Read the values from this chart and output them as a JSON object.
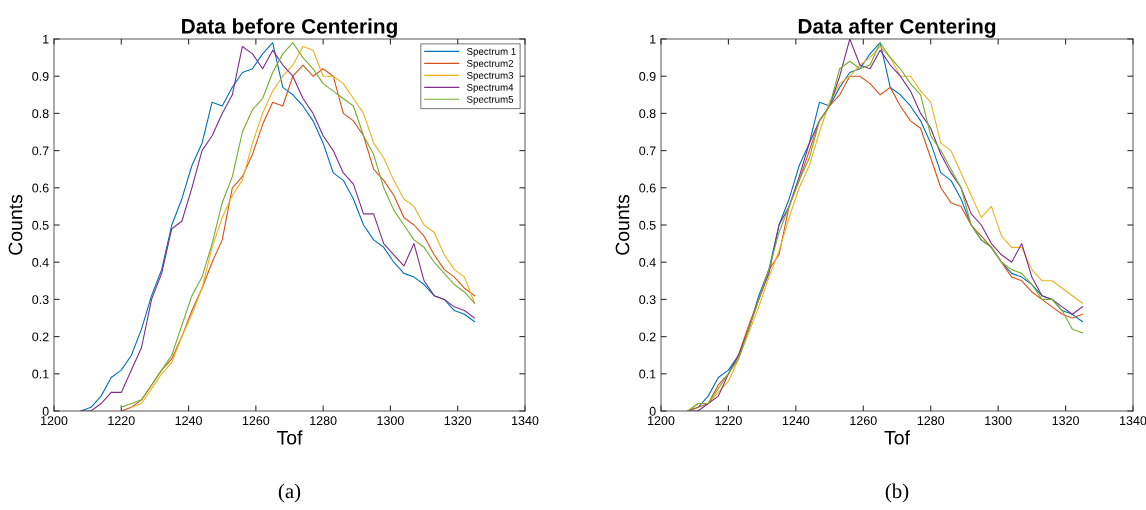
{
  "chart_data": [
    {
      "type": "line",
      "title": "Data before Centering",
      "xlabel": "Tof",
      "ylabel": "Counts",
      "annotations": [
        "(a)"
      ],
      "xlim": [
        1200,
        1340
      ],
      "xticks": [
        1200,
        1220,
        1240,
        1260,
        1280,
        1300,
        1320,
        1340
      ],
      "ylim": [
        0,
        1
      ],
      "yticks": [
        0,
        0.1,
        0.2,
        0.3,
        0.4,
        0.5,
        0.6,
        0.7,
        0.8,
        0.9,
        1
      ],
      "grid": false,
      "legend": "top right",
      "x": [
        1208,
        1211,
        1214,
        1217,
        1220,
        1223,
        1226,
        1229,
        1232,
        1235,
        1238,
        1241,
        1244,
        1247,
        1250,
        1253,
        1256,
        1259,
        1262,
        1265,
        1268,
        1271,
        1274,
        1277,
        1280,
        1283,
        1286,
        1289,
        1292,
        1295,
        1298,
        1301,
        1304,
        1307,
        1310,
        1313,
        1316,
        1319,
        1322,
        1325
      ],
      "series": [
        {
          "name": "Spectrum 1",
          "color": "#0072bd",
          "values": [
            0,
            0.01,
            0.04,
            0.09,
            0.11,
            0.15,
            0.22,
            0.31,
            0.38,
            0.5,
            0.57,
            0.66,
            0.72,
            0.83,
            0.82,
            0.87,
            0.91,
            0.92,
            0.96,
            0.99,
            0.87,
            0.85,
            0.82,
            0.78,
            0.72,
            0.64,
            0.62,
            0.57,
            0.5,
            0.46,
            0.44,
            0.4,
            0.37,
            0.36,
            0.34,
            0.31,
            0.3,
            0.27,
            0.26,
            0.24
          ]
        },
        {
          "name": "Spectrum2",
          "color": "#d95319",
          "values": [
            null,
            null,
            null,
            null,
            0,
            0.01,
            0.03,
            0.07,
            0.11,
            0.14,
            0.2,
            0.27,
            0.33,
            0.4,
            0.46,
            0.6,
            0.63,
            0.69,
            0.77,
            0.83,
            0.82,
            0.9,
            0.93,
            0.9,
            0.92,
            0.9,
            0.8,
            0.78,
            0.74,
            0.65,
            0.62,
            0.58,
            0.52,
            0.5,
            0.47,
            0.42,
            0.38,
            0.36,
            0.33,
            0.31
          ]
        },
        {
          "name": "Spectrum3",
          "color": "#edb120",
          "values": [
            null,
            null,
            null,
            null,
            null,
            0.01,
            0.02,
            0.06,
            0.1,
            0.13,
            0.2,
            0.26,
            0.33,
            0.44,
            0.52,
            0.58,
            0.62,
            0.72,
            0.8,
            0.86,
            0.9,
            0.93,
            0.98,
            0.97,
            0.9,
            0.9,
            0.88,
            0.84,
            0.8,
            0.72,
            0.68,
            0.62,
            0.57,
            0.55,
            0.5,
            0.48,
            0.42,
            0.38,
            0.36,
            0.29
          ]
        },
        {
          "name": "Spectrum4",
          "color": "#7e2f8e",
          "values": [
            0,
            0,
            0.02,
            0.05,
            0.05,
            0.11,
            0.17,
            0.3,
            0.37,
            0.49,
            0.51,
            0.6,
            0.7,
            0.74,
            0.8,
            0.85,
            0.98,
            0.96,
            0.92,
            0.97,
            0.93,
            0.9,
            0.84,
            0.8,
            0.74,
            0.7,
            0.64,
            0.61,
            0.53,
            0.53,
            0.45,
            0.42,
            0.39,
            0.45,
            0.35,
            0.31,
            0.3,
            0.28,
            0.27,
            0.25
          ]
        },
        {
          "name": "Spectrum5",
          "color": "#77ac30",
          "values": [
            null,
            null,
            null,
            null,
            0.01,
            0.02,
            0.03,
            0.07,
            0.11,
            0.15,
            0.23,
            0.31,
            0.36,
            0.45,
            0.56,
            0.63,
            0.75,
            0.81,
            0.84,
            0.91,
            0.96,
            0.99,
            0.95,
            0.92,
            0.88,
            0.86,
            0.84,
            0.82,
            0.74,
            0.69,
            0.6,
            0.54,
            0.5,
            0.46,
            0.44,
            0.4,
            0.37,
            0.34,
            0.32,
            0.29
          ]
        }
      ]
    },
    {
      "type": "line",
      "title": "Data after Centering",
      "xlabel": "Tof",
      "ylabel": "Counts",
      "annotations": [
        "(b)"
      ],
      "xlim": [
        1200,
        1340
      ],
      "xticks": [
        1200,
        1220,
        1240,
        1260,
        1280,
        1300,
        1320,
        1340
      ],
      "ylim": [
        0,
        1
      ],
      "yticks": [
        0,
        0.1,
        0.2,
        0.3,
        0.4,
        0.5,
        0.6,
        0.7,
        0.8,
        0.9,
        1
      ],
      "grid": false,
      "x": [
        1208,
        1211,
        1214,
        1217,
        1220,
        1223,
        1226,
        1229,
        1232,
        1235,
        1238,
        1241,
        1244,
        1247,
        1250,
        1253,
        1256,
        1259,
        1262,
        1265,
        1268,
        1271,
        1274,
        1277,
        1280,
        1283,
        1286,
        1289,
        1292,
        1295,
        1298,
        1301,
        1304,
        1307,
        1310,
        1313,
        1316,
        1319,
        1322,
        1325
      ],
      "series": [
        {
          "color": "#0072bd",
          "values": [
            0,
            0.01,
            0.04,
            0.09,
            0.11,
            0.15,
            0.22,
            0.31,
            0.38,
            0.5,
            0.57,
            0.66,
            0.72,
            0.83,
            0.82,
            0.87,
            0.91,
            0.92,
            0.96,
            0.99,
            0.87,
            0.85,
            0.82,
            0.78,
            0.72,
            0.64,
            0.62,
            0.57,
            0.5,
            0.46,
            0.44,
            0.4,
            0.37,
            0.36,
            0.34,
            0.31,
            0.3,
            0.27,
            0.26,
            0.24
          ]
        },
        {
          "color": "#d95319",
          "values": [
            0,
            0.01,
            0.02,
            0.07,
            0.1,
            0.15,
            0.23,
            0.3,
            0.38,
            0.42,
            0.55,
            0.62,
            0.7,
            0.78,
            0.82,
            0.85,
            0.9,
            0.9,
            0.88,
            0.85,
            0.87,
            0.82,
            0.78,
            0.76,
            0.68,
            0.6,
            0.56,
            0.55,
            0.5,
            0.47,
            0.44,
            0.4,
            0.36,
            0.35,
            0.32,
            0.3,
            0.28,
            0.26,
            0.25,
            0.26
          ]
        },
        {
          "color": "#edb120",
          "values": [
            0,
            0.02,
            0.02,
            0.05,
            0.08,
            0.14,
            0.21,
            0.28,
            0.36,
            0.43,
            0.52,
            0.6,
            0.66,
            0.75,
            0.83,
            0.88,
            0.9,
            0.93,
            0.95,
            0.98,
            0.95,
            0.9,
            0.9,
            0.86,
            0.83,
            0.72,
            0.7,
            0.64,
            0.58,
            0.52,
            0.55,
            0.47,
            0.44,
            0.44,
            0.38,
            0.35,
            0.35,
            0.33,
            0.31,
            0.29
          ]
        },
        {
          "color": "#7e2f8e",
          "values": [
            0,
            0,
            0.02,
            0.04,
            0.1,
            0.15,
            0.22,
            0.3,
            0.37,
            0.5,
            0.55,
            0.63,
            0.72,
            0.78,
            0.82,
            0.9,
            1,
            0.93,
            0.92,
            0.97,
            0.93,
            0.9,
            0.86,
            0.8,
            0.76,
            0.69,
            0.64,
            0.6,
            0.53,
            0.5,
            0.45,
            0.42,
            0.4,
            0.45,
            0.36,
            0.31,
            0.3,
            0.28,
            0.26,
            0.28
          ]
        },
        {
          "color": "#77ac30",
          "values": [
            0,
            0.02,
            0.02,
            0.06,
            0.1,
            0.14,
            0.22,
            0.3,
            0.38,
            0.48,
            0.55,
            0.62,
            0.68,
            0.78,
            0.82,
            0.92,
            0.94,
            0.92,
            0.93,
            0.99,
            0.95,
            0.92,
            0.88,
            0.85,
            0.74,
            0.7,
            0.65,
            0.6,
            0.5,
            0.46,
            0.44,
            0.4,
            0.38,
            0.37,
            0.34,
            0.3,
            0.3,
            0.27,
            0.22,
            0.21
          ]
        }
      ]
    }
  ]
}
